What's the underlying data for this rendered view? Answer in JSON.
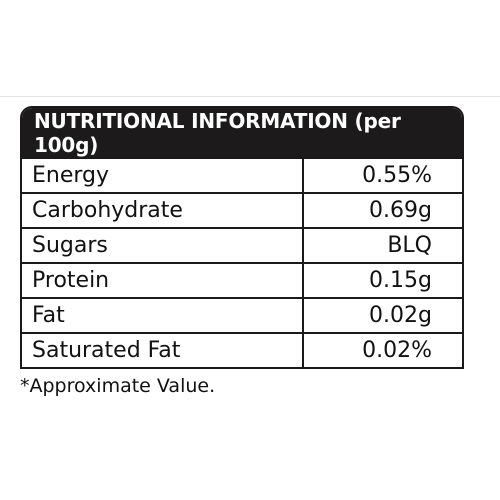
{
  "table": {
    "header": "NUTRITIONAL INFORMATION (per 100g)",
    "rows": [
      {
        "label": "Energy",
        "value": "0.55%"
      },
      {
        "label": "Carbohydrate",
        "value": "0.69g"
      },
      {
        "label": "Sugars",
        "value": "BLQ"
      },
      {
        "label": "Protein",
        "value": "0.15g"
      },
      {
        "label": "Fat",
        "value": "0.02g"
      },
      {
        "label": "Saturated Fat",
        "value": "0.02%"
      }
    ]
  },
  "footnote": "*Approximate Value.",
  "colors": {
    "header_background": "#1c1a1b",
    "header_text": "#ffffff",
    "border": "#1a1a1a",
    "text": "#111111"
  }
}
